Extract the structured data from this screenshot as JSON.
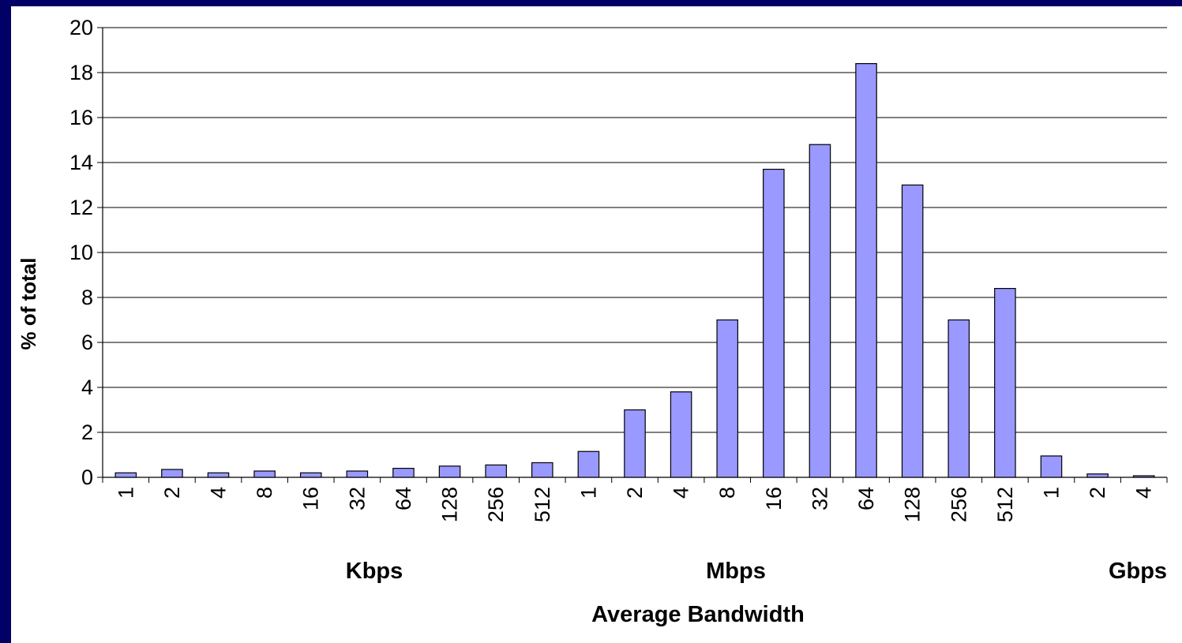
{
  "chart_data": {
    "type": "bar",
    "title": "",
    "xlabel": "Average Bandwidth",
    "ylabel": "% of total",
    "ylim": [
      0,
      20
    ],
    "yticks": [
      0,
      2,
      4,
      6,
      8,
      10,
      12,
      14,
      16,
      18,
      20
    ],
    "grid": true,
    "legend": "none",
    "categories": [
      "1",
      "2",
      "4",
      "8",
      "16",
      "32",
      "64",
      "128",
      "256",
      "512",
      "1",
      "2",
      "4",
      "8",
      "16",
      "32",
      "64",
      "128",
      "256",
      "512",
      "1",
      "2",
      "4"
    ],
    "values": [
      0.2,
      0.35,
      0.2,
      0.28,
      0.2,
      0.28,
      0.4,
      0.5,
      0.55,
      0.65,
      1.15,
      3.0,
      3.8,
      7.0,
      13.7,
      14.8,
      18.4,
      13.0,
      7.0,
      8.4,
      0.95,
      0.15,
      0.07
    ],
    "unit_groups": [
      {
        "label": "Kbps",
        "start_index": 0
      },
      {
        "label": "Mbps",
        "start_index": 10
      },
      {
        "label": "Gbps",
        "start_index": 20
      }
    ],
    "colors": {
      "bar_fill": "#9999ff",
      "bar_stroke": "#000000",
      "background": "#000066",
      "plot_bg": "#ffffff"
    }
  }
}
